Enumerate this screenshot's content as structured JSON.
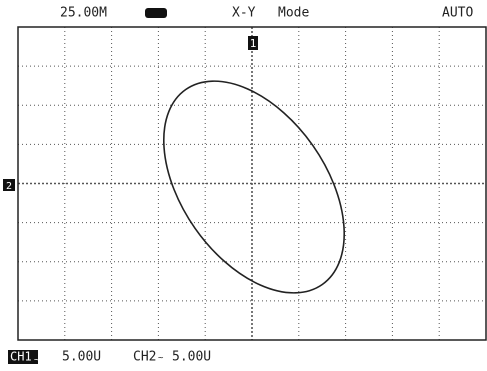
{
  "header": {
    "timebase": "25.00M",
    "display": "X-Y",
    "mode": "Mode",
    "trigger": "AUTO"
  },
  "markers": {
    "ch1": "1",
    "ch2": "2"
  },
  "footer": {
    "ch1_label": "CH1",
    "ch1_scale": "5.00U",
    "ch2_label": "CH2",
    "ch2_scale": "5.00U"
  }
}
